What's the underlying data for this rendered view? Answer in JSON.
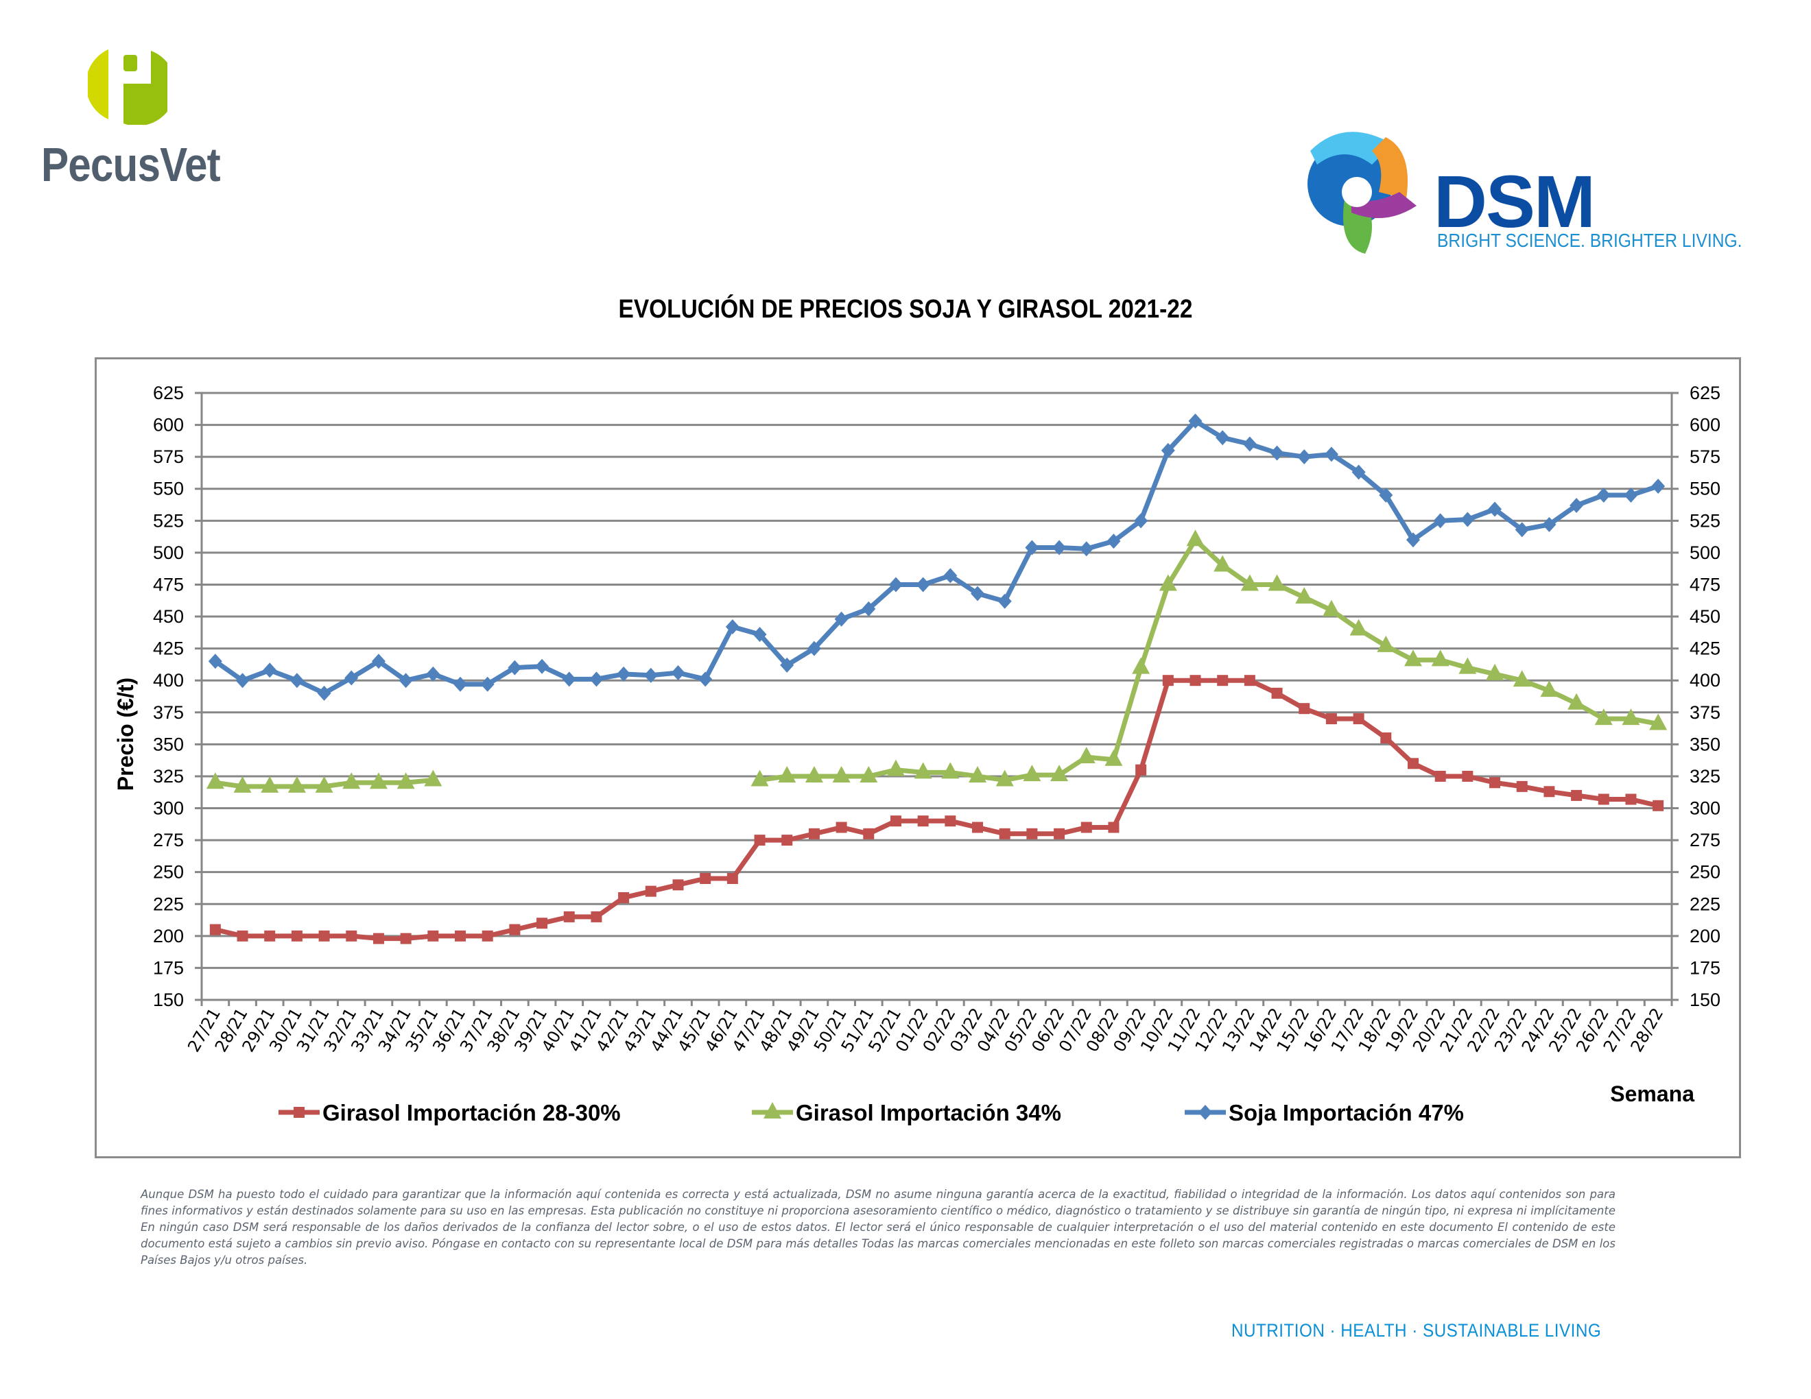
{
  "header": {
    "left_logo": {
      "name": "PecusVet",
      "icon": "pecusvet-p-logo-icon",
      "colors": {
        "light_green": "#d2d900",
        "green": "#97bf0d",
        "text": "#515e6d"
      }
    },
    "right_logo": {
      "name": "DSM",
      "tagline": "BRIGHT SCIENCE. BRIGHTER LIVING.",
      "icon": "dsm-swirl-logo-icon",
      "colors": {
        "name": "#0b4da2",
        "tagline": "#1a8fd1"
      }
    }
  },
  "chart_data": {
    "type": "line",
    "title": "EVOLUCIÓN DE PRECIOS SOJA Y GIRASOL 2021-22",
    "xlabel": "Semana",
    "ylabel": "Precio (€/t)",
    "ylim": [
      150,
      625
    ],
    "ystep": 25,
    "yticks": [
      "150",
      "175",
      "200",
      "225",
      "250",
      "275",
      "300",
      "325",
      "350",
      "375",
      "400",
      "425",
      "450",
      "475",
      "500",
      "525",
      "550",
      "575",
      "600",
      "625"
    ],
    "secondary_y_axis": true,
    "grid": "horizontal",
    "legend_position": "bottom",
    "categories": [
      "27/21",
      "28/21",
      "29/21",
      "30/21",
      "31/21",
      "32/21",
      "33/21",
      "34/21",
      "35/21",
      "36/21",
      "37/21",
      "38/21",
      "39/21",
      "40/21",
      "41/21",
      "42/21",
      "43/21",
      "44/21",
      "45/21",
      "46/21",
      "47/21",
      "48/21",
      "49/21",
      "50/21",
      "51/21",
      "52/21",
      "01/22",
      "02/22",
      "03/22",
      "04/22",
      "05/22",
      "06/22",
      "07/22",
      "08/22",
      "09/22",
      "10/22",
      "11/22",
      "12/22",
      "13/22",
      "14/22",
      "15/22",
      "16/22",
      "17/22",
      "18/22",
      "19/22",
      "20/22",
      "21/22",
      "22/22",
      "23/22",
      "24/22",
      "25/22",
      "26/22",
      "27/22",
      "28/22"
    ],
    "series": [
      {
        "name": "Girasol Importación 28-30%",
        "color": "#c0504d",
        "marker": "square",
        "values": [
          205,
          200,
          200,
          200,
          200,
          200,
          198,
          198,
          200,
          200,
          200,
          205,
          210,
          215,
          215,
          230,
          235,
          240,
          245,
          245,
          275,
          275,
          280,
          285,
          280,
          290,
          290,
          290,
          285,
          280,
          280,
          280,
          285,
          285,
          330,
          400,
          400,
          400,
          400,
          390,
          378,
          370,
          370,
          355,
          335,
          325,
          325,
          320,
          317,
          313,
          310,
          307,
          307,
          302
        ]
      },
      {
        "name": "Girasol Importación 34%",
        "color": "#9bbb59",
        "marker": "triangle",
        "values": [
          320,
          317,
          317,
          317,
          317,
          320,
          320,
          320,
          322,
          null,
          null,
          null,
          null,
          null,
          null,
          null,
          null,
          null,
          null,
          null,
          322,
          325,
          325,
          325,
          325,
          330,
          328,
          328,
          325,
          322,
          326,
          326,
          340,
          338,
          410,
          475,
          510,
          490,
          475,
          475,
          465,
          455,
          440,
          427,
          416,
          416,
          410,
          405,
          400,
          392,
          382,
          370,
          370,
          366
        ]
      },
      {
        "name": "Soja Importación 47%",
        "color": "#4f81bd",
        "marker": "diamond",
        "values": [
          415,
          400,
          408,
          400,
          390,
          402,
          415,
          400,
          405,
          397,
          397,
          410,
          411,
          401,
          401,
          405,
          404,
          406,
          401,
          442,
          436,
          412,
          425,
          448,
          456,
          475,
          475,
          482,
          468,
          462,
          504,
          504,
          503,
          509,
          525,
          580,
          603,
          590,
          585,
          578,
          575,
          577,
          563,
          545,
          510,
          525,
          526,
          534,
          518,
          522,
          537,
          545,
          545,
          552
        ]
      }
    ]
  },
  "footer": {
    "disclaimer": "Aunque DSM ha puesto todo el cuidado para garantizar que la información aquí contenida es correcta y está actualizada, DSM no asume ninguna garantía acerca de la exactitud, fiabilidad o integridad de la información. Los datos aquí contenidos son para fines informativos y están destinados solamente para su uso en las empresas. Esta publicación no constituye ni proporciona asesoramiento científico o médico, diagnóstico o tratamiento y se distribuye sin garantía de ningún tipo, ni expresa ni implícitamente En ningún caso DSM será responsable de los daños derivados de la confianza del lector sobre, o el uso de estos datos. El lector será el único responsable de cualquier interpretación o el uso del material contenido en este documento El contenido de este documento está sujeto a cambios sin previo aviso. Póngase en contacto con su representante local de DSM para más detalles Todas las marcas comerciales mencionadas en este folleto son marcas comerciales registradas o marcas comerciales de DSM en los Países Bajos y/u otros países.",
    "tagline": "NUTRITION  ·  HEALTH  ·  SUSTAINABLE LIVING"
  }
}
